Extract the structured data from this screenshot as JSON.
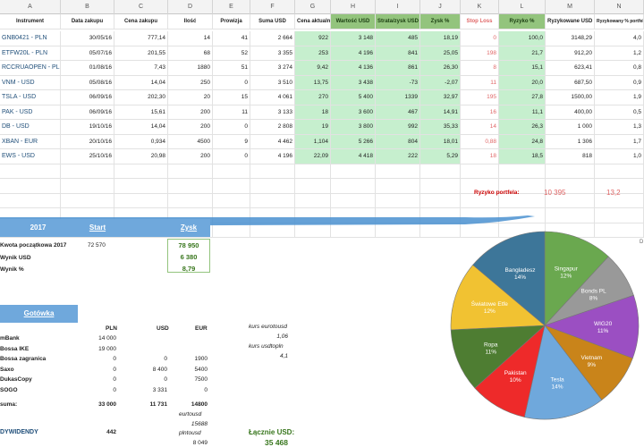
{
  "col_letters": [
    "A",
    "B",
    "C",
    "D",
    "E",
    "F",
    "G",
    "H",
    "I",
    "J",
    "K",
    "L",
    "M",
    "N"
  ],
  "headers": [
    "Instrument",
    "Data zakupu",
    "Cena zakupu",
    "Ilość",
    "Prowizja",
    "Suma USD",
    "Cena aktualna",
    "Wartość USD",
    "Strata/zysk USD",
    "Zysk %",
    "Stop Loss",
    "Ryzyko %",
    "Ryzykowane USD",
    "Ryzykowany % portfela"
  ],
  "rows": [
    [
      "GNB0421 - PLN",
      "30/05/16",
      "777,14",
      "14",
      "41",
      "2 664",
      "922",
      "3 148",
      "485",
      "18,19",
      "0",
      "100,0",
      "3148,29",
      "4,0"
    ],
    [
      "ETFW20L - PLN",
      "05/07/16",
      "201,55",
      "68",
      "52",
      "3 355",
      "253",
      "4 196",
      "841",
      "25,05",
      "198",
      "21,7",
      "912,20",
      "1,2"
    ],
    [
      "RCCRUAOPEN - PLN",
      "01/08/16",
      "7,43",
      "1880",
      "51",
      "3 274",
      "9,42",
      "4 136",
      "861",
      "26,30",
      "8",
      "15,1",
      "623,41",
      "0,8"
    ],
    [
      "VNM - USD",
      "05/08/16",
      "14,04",
      "250",
      "0",
      "3 510",
      "13,75",
      "3 438",
      "-73",
      "-2,07",
      "11",
      "20,0",
      "687,50",
      "0,9"
    ],
    [
      "TSLA - USD",
      "06/09/16",
      "202,30",
      "20",
      "15",
      "4 061",
      "270",
      "5 400",
      "1339",
      "32,97",
      "195",
      "27,8",
      "1500,00",
      "1,9"
    ],
    [
      "PAK - USD",
      "06/09/16",
      "15,61",
      "200",
      "11",
      "3 133",
      "18",
      "3 600",
      "467",
      "14,91",
      "16",
      "11,1",
      "400,00",
      "0,5"
    ],
    [
      "DB - USD",
      "19/10/16",
      "14,04",
      "200",
      "0",
      "2 808",
      "19",
      "3 800",
      "992",
      "35,33",
      "14",
      "26,3",
      "1 000",
      "1,3"
    ],
    [
      "XBAN - EUR",
      "20/10/16",
      "0,934",
      "4500",
      "9",
      "4 462",
      "1,104",
      "5 266",
      "804",
      "18,01",
      "0,88",
      "24,8",
      "1 306",
      "1,7"
    ],
    [
      "EWS - USD",
      "25/10/16",
      "20,98",
      "200",
      "0",
      "4 196",
      "22,09",
      "4 418",
      "222",
      "5,29",
      "18",
      "18,5",
      "818",
      "1,0"
    ]
  ],
  "risk": {
    "label": "Ryzyko portfela:",
    "usd": "10 395",
    "pct": "13,2"
  },
  "y2017": {
    "tabs": [
      "2017",
      "Start",
      "Zysk"
    ],
    "labels": [
      "Kwota początkowa 2017",
      "Wynik USD",
      "Wynik %"
    ],
    "start": "72 570",
    "zysk": [
      "78 950",
      "6 380",
      "8,79"
    ]
  },
  "cash": {
    "title": "Gotówka",
    "cols": [
      "PLN",
      "USD",
      "EUR"
    ],
    "rows": [
      [
        "mBank",
        "14 000",
        "",
        ""
      ],
      [
        "Bossa IKE",
        "19 000",
        "",
        ""
      ],
      [
        "Bossa zagranica",
        "0",
        "0",
        "1900"
      ],
      [
        "Saxo",
        "0",
        "8 400",
        "5400"
      ],
      [
        "DukasCopy",
        "0",
        "0",
        "7500"
      ],
      [
        "SOGO",
        "0",
        "3 331",
        "0"
      ]
    ],
    "suma_label": "suma:",
    "suma": [
      "33 000",
      "11 731",
      "14800"
    ],
    "kurs1_label": "kurs eurotousd",
    "kurs1": "1,06",
    "kurs2_label": "kurs usdtopln",
    "kurs2": "4,1",
    "eurousd_label": "eurtousd",
    "eurousd": "15688",
    "div_label": "DYWIDENDY",
    "div_val": "442",
    "pln_label": "plntousd",
    "pln_val": "8 049",
    "total_label": "Łącznie USD:",
    "total": "35 468"
  },
  "chart_data": {
    "type": "pie",
    "title": "",
    "slices": [
      {
        "label": "Singapur",
        "value": 12,
        "color": "#6aa84f"
      },
      {
        "label": "Bonds PL",
        "value": 8,
        "color": "#999999"
      },
      {
        "label": "WIG20",
        "value": 11,
        "color": "#9b4fc2"
      },
      {
        "label": "Vietnam",
        "value": 9,
        "color": "#c9841a"
      },
      {
        "label": "Tesla",
        "value": 14,
        "color": "#6fa8dc"
      },
      {
        "label": "Pakistan",
        "value": 10,
        "color": "#ee2a2a"
      },
      {
        "label": "Ropa",
        "value": 11,
        "color": "#4e7d32"
      },
      {
        "label": "Światowe Etfe",
        "value": 12,
        "color": "#f1c232"
      },
      {
        "label": "Bangladesz",
        "value": 14,
        "color": "#3d7699"
      }
    ],
    "right_edge_letter": "D"
  }
}
